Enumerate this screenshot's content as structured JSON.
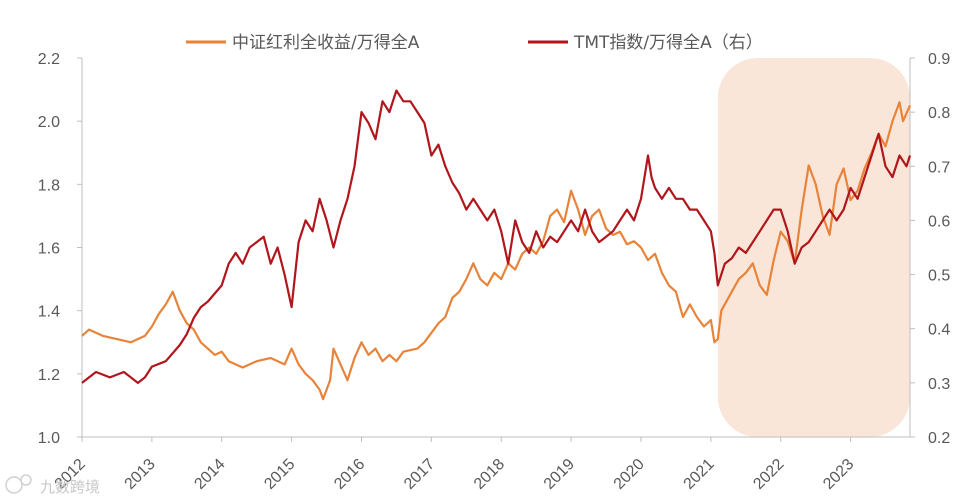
{
  "chart_data": {
    "type": "line",
    "title": "",
    "xlabel": "",
    "ylabel": "",
    "x_ticks": [
      "2012",
      "2013",
      "2014",
      "2015",
      "2016",
      "2017",
      "2018",
      "2019",
      "2020",
      "2021",
      "2022",
      "2023"
    ],
    "xlim": [
      2012.0,
      2023.85
    ],
    "y_left": {
      "range": [
        1.0,
        2.2
      ],
      "ticks": [
        "1.0",
        "1.2",
        "1.4",
        "1.6",
        "1.8",
        "2.0",
        "2.2"
      ]
    },
    "y_right": {
      "range": [
        0.2,
        0.9
      ],
      "ticks": [
        "0.2",
        "0.3",
        "0.4",
        "0.5",
        "0.6",
        "0.7",
        "0.8",
        "0.9"
      ]
    },
    "legend_position": "top",
    "highlight": {
      "x_start": 2021.1,
      "x_end": 2023.85,
      "color": "#f8d9c5"
    },
    "series": [
      {
        "name": "中证红利全收益/万得全A",
        "axis": "left",
        "color": "#e8833a",
        "points": [
          [
            2012.0,
            1.32
          ],
          [
            2012.1,
            1.34
          ],
          [
            2012.3,
            1.32
          ],
          [
            2012.5,
            1.31
          ],
          [
            2012.7,
            1.3
          ],
          [
            2012.9,
            1.32
          ],
          [
            2013.0,
            1.35
          ],
          [
            2013.1,
            1.39
          ],
          [
            2013.2,
            1.42
          ],
          [
            2013.3,
            1.46
          ],
          [
            2013.4,
            1.4
          ],
          [
            2013.5,
            1.36
          ],
          [
            2013.6,
            1.34
          ],
          [
            2013.7,
            1.3
          ],
          [
            2013.8,
            1.28
          ],
          [
            2013.9,
            1.26
          ],
          [
            2014.0,
            1.27
          ],
          [
            2014.1,
            1.24
          ],
          [
            2014.3,
            1.22
          ],
          [
            2014.5,
            1.24
          ],
          [
            2014.7,
            1.25
          ],
          [
            2014.9,
            1.23
          ],
          [
            2015.0,
            1.28
          ],
          [
            2015.1,
            1.23
          ],
          [
            2015.2,
            1.2
          ],
          [
            2015.3,
            1.18
          ],
          [
            2015.4,
            1.15
          ],
          [
            2015.45,
            1.12
          ],
          [
            2015.55,
            1.18
          ],
          [
            2015.6,
            1.28
          ],
          [
            2015.7,
            1.23
          ],
          [
            2015.8,
            1.18
          ],
          [
            2015.9,
            1.25
          ],
          [
            2016.0,
            1.3
          ],
          [
            2016.1,
            1.26
          ],
          [
            2016.2,
            1.28
          ],
          [
            2016.3,
            1.24
          ],
          [
            2016.4,
            1.26
          ],
          [
            2016.5,
            1.24
          ],
          [
            2016.6,
            1.27
          ],
          [
            2016.8,
            1.28
          ],
          [
            2016.9,
            1.3
          ],
          [
            2017.0,
            1.33
          ],
          [
            2017.1,
            1.36
          ],
          [
            2017.2,
            1.38
          ],
          [
            2017.3,
            1.44
          ],
          [
            2017.4,
            1.46
          ],
          [
            2017.5,
            1.5
          ],
          [
            2017.6,
            1.55
          ],
          [
            2017.7,
            1.5
          ],
          [
            2017.8,
            1.48
          ],
          [
            2017.9,
            1.52
          ],
          [
            2018.0,
            1.5
          ],
          [
            2018.1,
            1.55
          ],
          [
            2018.2,
            1.53
          ],
          [
            2018.3,
            1.58
          ],
          [
            2018.4,
            1.6
          ],
          [
            2018.5,
            1.58
          ],
          [
            2018.6,
            1.62
          ],
          [
            2018.7,
            1.7
          ],
          [
            2018.8,
            1.72
          ],
          [
            2018.9,
            1.68
          ],
          [
            2019.0,
            1.78
          ],
          [
            2019.1,
            1.72
          ],
          [
            2019.2,
            1.64
          ],
          [
            2019.3,
            1.7
          ],
          [
            2019.4,
            1.72
          ],
          [
            2019.5,
            1.66
          ],
          [
            2019.6,
            1.64
          ],
          [
            2019.7,
            1.65
          ],
          [
            2019.8,
            1.61
          ],
          [
            2019.9,
            1.62
          ],
          [
            2020.0,
            1.6
          ],
          [
            2020.1,
            1.56
          ],
          [
            2020.2,
            1.58
          ],
          [
            2020.3,
            1.52
          ],
          [
            2020.4,
            1.48
          ],
          [
            2020.5,
            1.46
          ],
          [
            2020.6,
            1.38
          ],
          [
            2020.7,
            1.42
          ],
          [
            2020.8,
            1.38
          ],
          [
            2020.9,
            1.35
          ],
          [
            2021.0,
            1.37
          ],
          [
            2021.05,
            1.3
          ],
          [
            2021.1,
            1.31
          ],
          [
            2021.15,
            1.4
          ],
          [
            2021.3,
            1.46
          ],
          [
            2021.4,
            1.5
          ],
          [
            2021.5,
            1.52
          ],
          [
            2021.6,
            1.55
          ],
          [
            2021.7,
            1.48
          ],
          [
            2021.8,
            1.45
          ],
          [
            2021.9,
            1.56
          ],
          [
            2022.0,
            1.65
          ],
          [
            2022.1,
            1.62
          ],
          [
            2022.2,
            1.55
          ],
          [
            2022.3,
            1.72
          ],
          [
            2022.4,
            1.86
          ],
          [
            2022.5,
            1.8
          ],
          [
            2022.6,
            1.7
          ],
          [
            2022.7,
            1.64
          ],
          [
            2022.8,
            1.8
          ],
          [
            2022.9,
            1.85
          ],
          [
            2023.0,
            1.75
          ],
          [
            2023.1,
            1.78
          ],
          [
            2023.2,
            1.85
          ],
          [
            2023.3,
            1.9
          ],
          [
            2023.4,
            1.96
          ],
          [
            2023.5,
            1.92
          ],
          [
            2023.6,
            2.0
          ],
          [
            2023.7,
            2.06
          ],
          [
            2023.75,
            2.0
          ],
          [
            2023.85,
            2.05
          ]
        ]
      },
      {
        "name": "TMT指数/万得全A（右）",
        "axis": "right",
        "color": "#b0161c",
        "points": [
          [
            2012.0,
            0.3
          ],
          [
            2012.1,
            0.31
          ],
          [
            2012.2,
            0.32
          ],
          [
            2012.4,
            0.31
          ],
          [
            2012.6,
            0.32
          ],
          [
            2012.8,
            0.3
          ],
          [
            2012.9,
            0.31
          ],
          [
            2013.0,
            0.33
          ],
          [
            2013.2,
            0.34
          ],
          [
            2013.4,
            0.37
          ],
          [
            2013.5,
            0.39
          ],
          [
            2013.6,
            0.42
          ],
          [
            2013.7,
            0.44
          ],
          [
            2013.8,
            0.45
          ],
          [
            2014.0,
            0.48
          ],
          [
            2014.1,
            0.52
          ],
          [
            2014.2,
            0.54
          ],
          [
            2014.3,
            0.52
          ],
          [
            2014.4,
            0.55
          ],
          [
            2014.5,
            0.56
          ],
          [
            2014.6,
            0.57
          ],
          [
            2014.7,
            0.52
          ],
          [
            2014.8,
            0.55
          ],
          [
            2014.9,
            0.5
          ],
          [
            2015.0,
            0.44
          ],
          [
            2015.1,
            0.56
          ],
          [
            2015.2,
            0.6
          ],
          [
            2015.3,
            0.58
          ],
          [
            2015.4,
            0.64
          ],
          [
            2015.5,
            0.6
          ],
          [
            2015.6,
            0.55
          ],
          [
            2015.7,
            0.6
          ],
          [
            2015.8,
            0.64
          ],
          [
            2015.9,
            0.7
          ],
          [
            2016.0,
            0.8
          ],
          [
            2016.1,
            0.78
          ],
          [
            2016.2,
            0.75
          ],
          [
            2016.3,
            0.82
          ],
          [
            2016.4,
            0.8
          ],
          [
            2016.5,
            0.84
          ],
          [
            2016.6,
            0.82
          ],
          [
            2016.7,
            0.82
          ],
          [
            2016.8,
            0.8
          ],
          [
            2016.9,
            0.78
          ],
          [
            2017.0,
            0.72
          ],
          [
            2017.1,
            0.74
          ],
          [
            2017.2,
            0.7
          ],
          [
            2017.3,
            0.67
          ],
          [
            2017.4,
            0.65
          ],
          [
            2017.5,
            0.62
          ],
          [
            2017.6,
            0.64
          ],
          [
            2017.7,
            0.62
          ],
          [
            2017.8,
            0.6
          ],
          [
            2017.9,
            0.62
          ],
          [
            2018.0,
            0.58
          ],
          [
            2018.1,
            0.52
          ],
          [
            2018.2,
            0.6
          ],
          [
            2018.3,
            0.56
          ],
          [
            2018.4,
            0.54
          ],
          [
            2018.5,
            0.58
          ],
          [
            2018.6,
            0.55
          ],
          [
            2018.7,
            0.57
          ],
          [
            2018.8,
            0.56
          ],
          [
            2018.9,
            0.58
          ],
          [
            2019.0,
            0.6
          ],
          [
            2019.1,
            0.58
          ],
          [
            2019.2,
            0.62
          ],
          [
            2019.3,
            0.58
          ],
          [
            2019.4,
            0.56
          ],
          [
            2019.5,
            0.57
          ],
          [
            2019.6,
            0.58
          ],
          [
            2019.7,
            0.6
          ],
          [
            2019.8,
            0.62
          ],
          [
            2019.9,
            0.6
          ],
          [
            2020.0,
            0.64
          ],
          [
            2020.1,
            0.72
          ],
          [
            2020.15,
            0.68
          ],
          [
            2020.2,
            0.66
          ],
          [
            2020.3,
            0.64
          ],
          [
            2020.4,
            0.66
          ],
          [
            2020.5,
            0.64
          ],
          [
            2020.6,
            0.64
          ],
          [
            2020.7,
            0.62
          ],
          [
            2020.8,
            0.62
          ],
          [
            2020.9,
            0.6
          ],
          [
            2021.0,
            0.58
          ],
          [
            2021.05,
            0.54
          ],
          [
            2021.1,
            0.48
          ],
          [
            2021.2,
            0.52
          ],
          [
            2021.3,
            0.53
          ],
          [
            2021.4,
            0.55
          ],
          [
            2021.5,
            0.54
          ],
          [
            2021.6,
            0.56
          ],
          [
            2021.7,
            0.58
          ],
          [
            2021.8,
            0.6
          ],
          [
            2021.9,
            0.62
          ],
          [
            2022.0,
            0.62
          ],
          [
            2022.1,
            0.58
          ],
          [
            2022.2,
            0.52
          ],
          [
            2022.3,
            0.55
          ],
          [
            2022.4,
            0.56
          ],
          [
            2022.5,
            0.58
          ],
          [
            2022.6,
            0.6
          ],
          [
            2022.7,
            0.62
          ],
          [
            2022.8,
            0.6
          ],
          [
            2022.9,
            0.62
          ],
          [
            2023.0,
            0.66
          ],
          [
            2023.1,
            0.64
          ],
          [
            2023.2,
            0.68
          ],
          [
            2023.3,
            0.72
          ],
          [
            2023.4,
            0.76
          ],
          [
            2023.5,
            0.7
          ],
          [
            2023.6,
            0.68
          ],
          [
            2023.7,
            0.72
          ],
          [
            2023.8,
            0.7
          ],
          [
            2023.85,
            0.72
          ]
        ]
      }
    ]
  },
  "watermark": {
    "text": "九数跨境",
    "icon": "brand-logo-icon"
  }
}
